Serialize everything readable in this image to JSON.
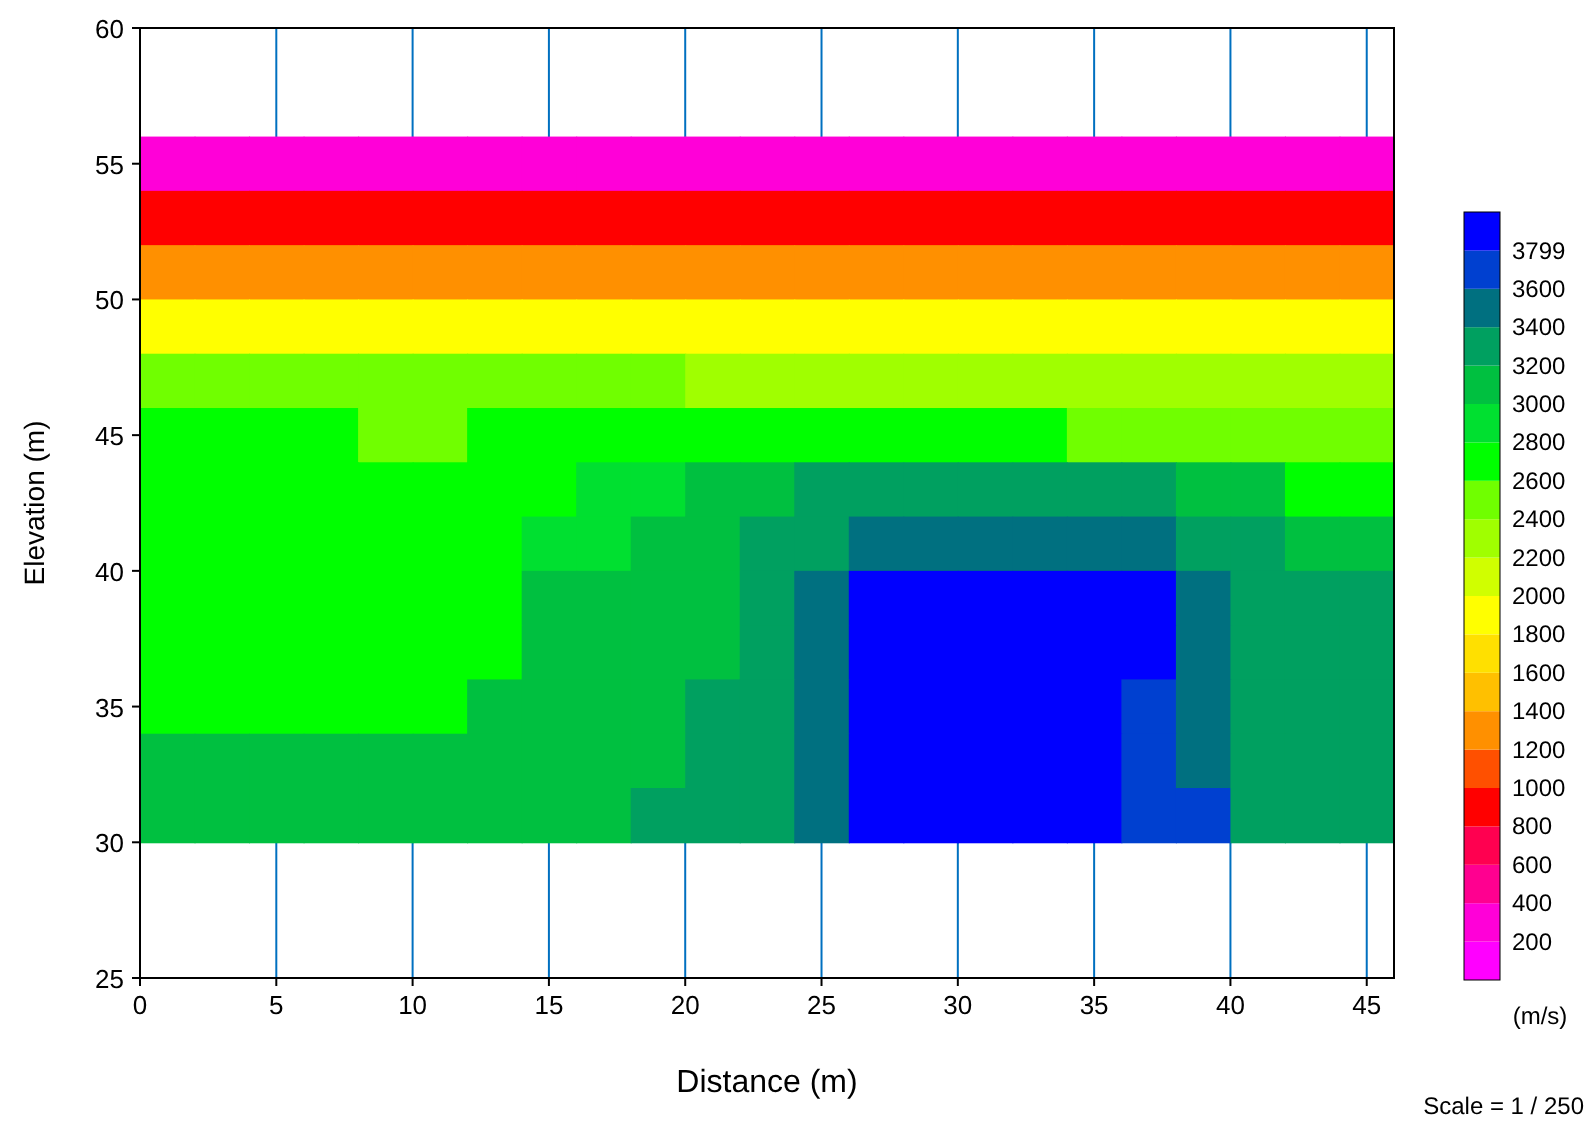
{
  "chart_data": {
    "type": "heatmap",
    "xlabel": "Distance (m)",
    "ylabel": "Elevation (m)",
    "clabel": "(m/s)",
    "annotations": [
      "Scale = 1 / 250"
    ],
    "x": [
      1,
      3,
      5,
      7,
      9,
      11,
      13,
      15,
      17,
      19,
      21,
      23,
      25,
      27,
      29,
      31,
      33,
      35,
      37,
      39,
      41,
      43,
      45
    ],
    "y": [
      55,
      53,
      51,
      49,
      47,
      45,
      43,
      41,
      39,
      37,
      35,
      33,
      31
    ],
    "cells": [
      [
        300,
        300,
        300,
        300,
        300,
        300,
        300,
        300,
        300,
        300,
        300,
        300,
        300,
        300,
        300,
        300,
        300,
        300,
        300,
        300,
        300,
        300,
        300
      ],
      [
        900,
        900,
        900,
        900,
        900,
        900,
        900,
        900,
        900,
        900,
        900,
        900,
        900,
        900,
        900,
        900,
        900,
        900,
        900,
        900,
        900,
        900,
        900
      ],
      [
        1300,
        1300,
        1300,
        1300,
        1300,
        1300,
        1300,
        1300,
        1300,
        1300,
        1300,
        1300,
        1300,
        1300,
        1300,
        1300,
        1300,
        1300,
        1300,
        1300,
        1300,
        1300,
        1300
      ],
      [
        1900,
        1900,
        1900,
        1900,
        1900,
        1900,
        1900,
        1900,
        1900,
        1900,
        1900,
        1900,
        1900,
        1900,
        1900,
        1900,
        1900,
        1900,
        1900,
        1900,
        1900,
        1900,
        1900
      ],
      [
        2500,
        2500,
        2500,
        2500,
        2500,
        2450,
        2450,
        2450,
        2450,
        2450,
        2300,
        2300,
        2300,
        2300,
        2300,
        2300,
        2300,
        2300,
        2300,
        2300,
        2300,
        2300,
        2300
      ],
      [
        2700,
        2700,
        2700,
        2700,
        2500,
        2500,
        2650,
        2650,
        2650,
        2750,
        2750,
        2750,
        2750,
        2600,
        2600,
        2600,
        2600,
        2450,
        2450,
        2450,
        2450,
        2450,
        2450
      ],
      [
        2700,
        2700,
        2700,
        2700,
        2700,
        2700,
        2700,
        2700,
        2900,
        2900,
        3100,
        3100,
        3300,
        3300,
        3300,
        3300,
        3300,
        3300,
        3300,
        3100,
        3100,
        2700,
        2700
      ],
      [
        2750,
        2750,
        2750,
        2750,
        2750,
        2750,
        2750,
        2900,
        2900,
        3100,
        3100,
        3300,
        3300,
        3500,
        3500,
        3500,
        3500,
        3500,
        3500,
        3300,
        3300,
        3100,
        3100
      ],
      [
        2750,
        2750,
        2750,
        2750,
        2750,
        2750,
        2750,
        3000,
        3000,
        3100,
        3100,
        3300,
        3500,
        3850,
        3850,
        3850,
        3850,
        3850,
        3850,
        3500,
        3300,
        3300,
        3200
      ],
      [
        2750,
        2750,
        2750,
        2750,
        2750,
        2750,
        2750,
        3000,
        3000,
        3100,
        3100,
        3300,
        3500,
        3850,
        3850,
        3850,
        3850,
        3850,
        3850,
        3500,
        3300,
        3300,
        3300
      ],
      [
        2750,
        2750,
        2750,
        2750,
        2750,
        2750,
        3000,
        3000,
        3100,
        3100,
        3300,
        3300,
        3500,
        3850,
        3850,
        3850,
        3850,
        3850,
        3700,
        3500,
        3300,
        3300,
        3300
      ],
      [
        3050,
        3050,
        3050,
        3050,
        3050,
        3050,
        3050,
        3050,
        3050,
        3050,
        3300,
        3300,
        3500,
        3850,
        3850,
        3850,
        3850,
        3850,
        3700,
        3500,
        3300,
        3300,
        3300
      ],
      [
        3050,
        3050,
        3050,
        3050,
        3050,
        3050,
        3050,
        3050,
        3050,
        3300,
        3300,
        3300,
        3500,
        3850,
        3850,
        3850,
        3850,
        3850,
        3700,
        3700,
        3300,
        3300,
        3300
      ]
    ],
    "clim": [
      0,
      4000
    ],
    "cticks": [
      200,
      400,
      600,
      800,
      1000,
      1200,
      1400,
      1600,
      1800,
      2000,
      2200,
      2400,
      2600,
      2800,
      3000,
      3200,
      3400,
      3600,
      3799
    ],
    "colors": [
      "#ff00ff",
      "#ff00d8",
      "#ff0090",
      "#ff0050",
      "#ff0000",
      "#ff5000",
      "#ff9000",
      "#ffc000",
      "#ffe000",
      "#ffff00",
      "#d0ff00",
      "#a0ff00",
      "#70ff00",
      "#00ff00",
      "#00e030",
      "#00c040",
      "#00a060",
      "#007080",
      "#0040d0",
      "#0000ff"
    ],
    "xlim": [
      0,
      46
    ],
    "ylim": [
      25,
      60
    ],
    "xticks": [
      0,
      5,
      10,
      15,
      20,
      25,
      30,
      35,
      40,
      45
    ],
    "yticks": [
      25,
      30,
      35,
      40,
      45,
      50,
      55,
      60
    ],
    "grid": "x"
  }
}
